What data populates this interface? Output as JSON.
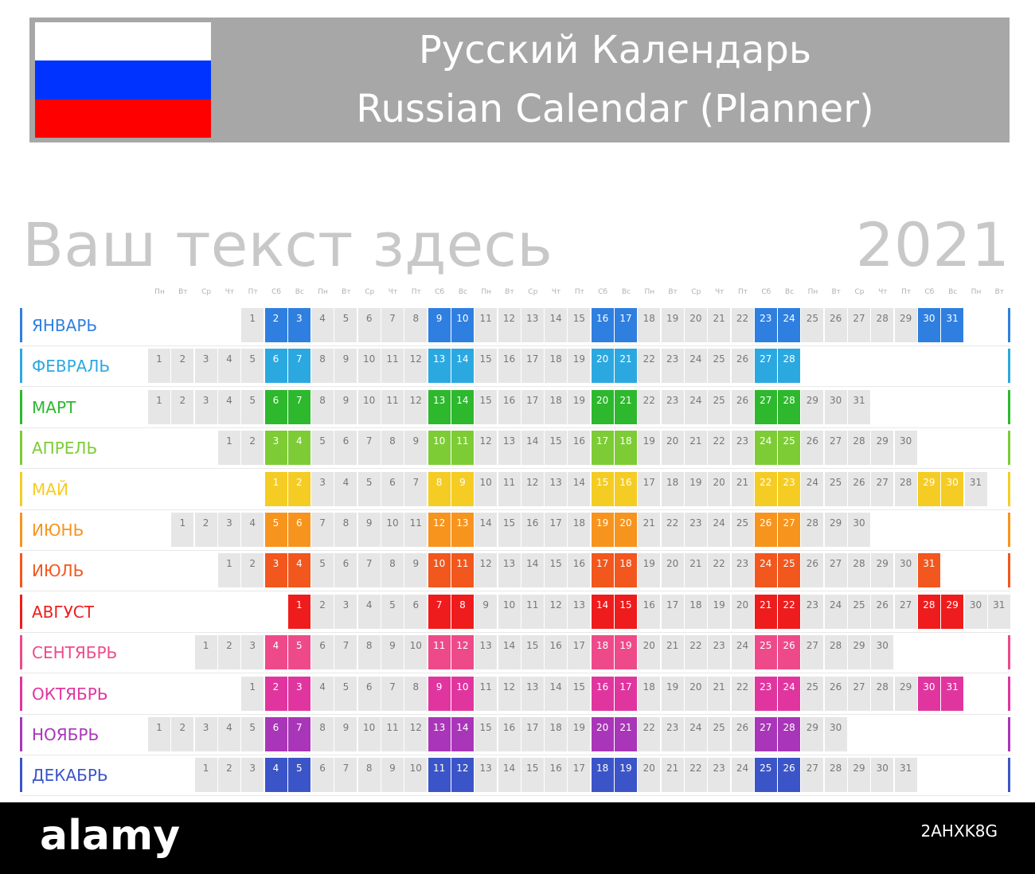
{
  "header": {
    "title_ru": "Русский Календарь",
    "title_en": "Russian Calendar (Planner)"
  },
  "subtitle": "Ваш текст здесь",
  "year": "2021",
  "weekdays": [
    "Пн",
    "Вт",
    "Ср",
    "Чт",
    "Пт",
    "Сб",
    "Вс",
    "Пн",
    "Вт",
    "Ср",
    "Чт",
    "Пт",
    "Сб",
    "Вс",
    "Пн",
    "Вт",
    "Ср",
    "Чт",
    "Пт",
    "Сб",
    "Вс",
    "Пн",
    "Вт",
    "Ср",
    "Чт",
    "Пт",
    "Сб",
    "Вс",
    "Пн",
    "Вт",
    "Ср",
    "Чт",
    "Пт",
    "Сб",
    "Вс",
    "Пн",
    "Вт"
  ],
  "months": [
    {
      "name": "ЯНВАРЬ",
      "offset": 4,
      "days": 31,
      "color": "#2f7fe0"
    },
    {
      "name": "ФЕВРАЛЬ",
      "offset": 0,
      "days": 28,
      "color": "#2ca8e0"
    },
    {
      "name": "МАРТ",
      "offset": 0,
      "days": 31,
      "color": "#2db82d"
    },
    {
      "name": "АПРЕЛЬ",
      "offset": 3,
      "days": 30,
      "color": "#7dcc35"
    },
    {
      "name": "МАЙ",
      "offset": 5,
      "days": 31,
      "color": "#f5cc23"
    },
    {
      "name": "ИЮНЬ",
      "offset": 1,
      "days": 30,
      "color": "#f7941d"
    },
    {
      "name": "ИЮЛЬ",
      "offset": 3,
      "days": 31,
      "color": "#f2571e"
    },
    {
      "name": "АВГУСТ",
      "offset": 6,
      "days": 31,
      "color": "#ee1c1c"
    },
    {
      "name": "СЕНТЯБРЬ",
      "offset": 2,
      "days": 30,
      "color": "#ee4a8a"
    },
    {
      "name": "ОКТЯБРЬ",
      "offset": 4,
      "days": 31,
      "color": "#e0359e"
    },
    {
      "name": "НОЯБРЬ",
      "offset": 0,
      "days": 30,
      "color": "#a936b8"
    },
    {
      "name": "ДЕКАБРЬ",
      "offset": 2,
      "days": 31,
      "color": "#3b55c8"
    }
  ],
  "footer": {
    "logo": "alamy",
    "reference": "2AHXK8G"
  }
}
